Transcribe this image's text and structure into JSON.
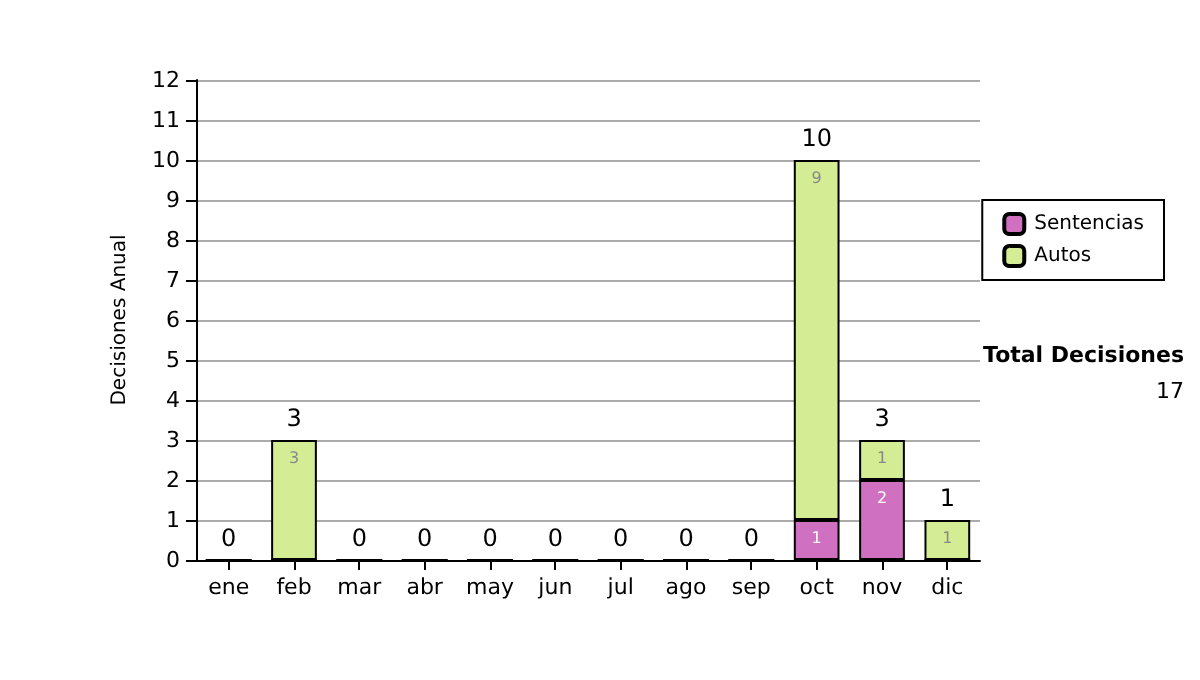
{
  "chart_data": {
    "type": "bar",
    "stacked": true,
    "ylabel": "Decisiones Anual",
    "categories": [
      "ene",
      "feb",
      "mar",
      "abr",
      "may",
      "jun",
      "jul",
      "ago",
      "sep",
      "oct",
      "nov",
      "dic"
    ],
    "series": [
      {
        "name": "Sentencias",
        "color": "#d070c0",
        "values": [
          0,
          0,
          0,
          0,
          0,
          0,
          0,
          0,
          0,
          1,
          2,
          0
        ],
        "value_labels": [
          null,
          null,
          null,
          null,
          null,
          null,
          null,
          null,
          null,
          "1",
          "2",
          null
        ]
      },
      {
        "name": "Autos",
        "color": "#d4ec94",
        "values": [
          0,
          3,
          0,
          0,
          0,
          0,
          0,
          0,
          0,
          9,
          1,
          1
        ],
        "value_labels": [
          null,
          "3",
          null,
          null,
          null,
          null,
          null,
          null,
          null,
          "9",
          "1",
          "1"
        ]
      }
    ],
    "totals": [
      "0",
      "3",
      "0",
      "0",
      "0",
      "0",
      "0",
      "0",
      "0",
      "10",
      "3",
      "1"
    ],
    "ylim": [
      0,
      12
    ],
    "yticks": [
      0,
      1,
      2,
      3,
      4,
      5,
      6,
      7,
      8,
      9,
      10,
      11,
      12
    ],
    "grid": "y",
    "legend": "right",
    "annotations": [
      "Total Decisiones",
      "17"
    ]
  }
}
